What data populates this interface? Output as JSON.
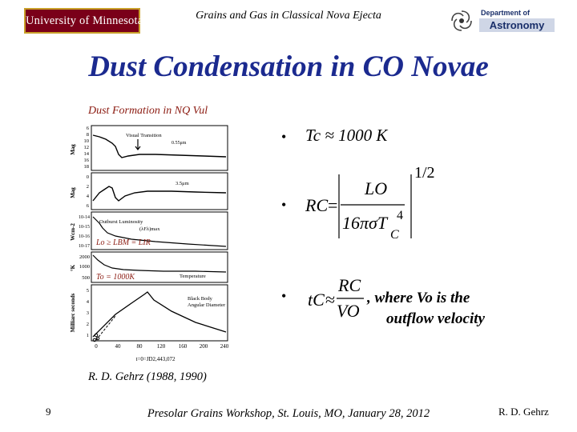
{
  "header": {
    "university_logo": "University of Minnesota",
    "title": "Grains and Gas in Classical Nova Ejecta",
    "dept_logo_top": "Department of",
    "dept_logo_name": "Astronomy"
  },
  "slide": {
    "title": "Dust Condensation in CO Novae"
  },
  "figure": {
    "caption": "Dust Formation in NQ Vul",
    "panel1": {
      "ylabel": "Mag",
      "ticks": [
        "6",
        "8",
        "10",
        "12",
        "14",
        "16",
        "18"
      ],
      "annotations": [
        "Visual Transition",
        "0.55μm"
      ]
    },
    "panel2": {
      "ylabel": "Mag",
      "ticks": [
        "0",
        "2",
        "4",
        "6"
      ],
      "annotations": [
        "3.5μm"
      ]
    },
    "panel3": {
      "ylabel": "Wcm-2",
      "ticks": [
        "10-14",
        "10-15",
        "10-16",
        "10-17"
      ],
      "annotations": [
        "Outburst Luminosity",
        "(λFλ)max"
      ]
    },
    "panel4": {
      "ylabel": "°K",
      "ticks": [
        "2000",
        "1000",
        "500"
      ],
      "annotations": [
        "Temperature"
      ]
    },
    "panel5": {
      "ylabel": "Milliarc seconds",
      "ticks": [
        "5",
        "4",
        "3",
        "2",
        "1"
      ],
      "annotations": [
        "Black Body",
        "Angular Diameter"
      ]
    },
    "xaxis": {
      "ticks": [
        "0",
        "40",
        "80",
        "120",
        "160",
        "200",
        "240"
      ],
      "label": "t=0=JD2,443,072"
    },
    "overlay_lum": "Lo ≥ LBM = LIR",
    "overlay_temp": "To =  1000K"
  },
  "bullets": {
    "symbol": "•",
    "b1_text": "Tc ≈ 1000 K",
    "b3_text_line1": ", where Vo is the",
    "b3_text_line2": "outflow velocity"
  },
  "equations": {
    "rc_lhs": "RC",
    "rc_num": "LO",
    "rc_den_coef": "16πσT",
    "rc_den_sub": "C",
    "rc_den_exp": "4",
    "rc_exp": "1/2",
    "tc_lhs": "tC",
    "tc_num": "RC",
    "tc_den": "VO",
    "approx": "≈",
    "equals": "="
  },
  "reference": "R. D. Gehrz  (1988, 1990)",
  "footer": {
    "page_number": "9",
    "center": "Presolar Grains Workshop, St. Louis, MO, January 28, 2012",
    "author": "R. D. Gehrz"
  },
  "colors": {
    "title_blue": "#1b2a8f",
    "caption_red": "#8b1a10",
    "umn_maroon": "#7a0019",
    "umn_gold": "#c8a02a"
  }
}
